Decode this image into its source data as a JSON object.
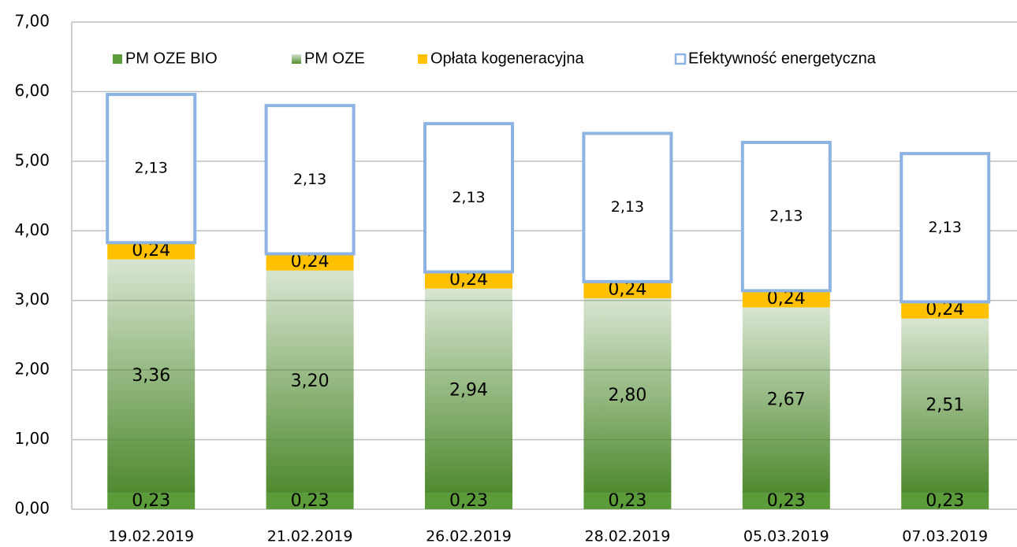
{
  "chart_data": {
    "type": "bar",
    "stacked": true,
    "categories": [
      "19.02.2019",
      "21.02.2019",
      "26.02.2019",
      "28.02.2019",
      "05.03.2019",
      "07.03.2019"
    ],
    "series": [
      {
        "name": "PM OZE BIO",
        "color": "#5b9b3a",
        "values": [
          0.23,
          0.23,
          0.23,
          0.23,
          0.23,
          0.23
        ],
        "value_labels": [
          "0,23",
          "0,23",
          "0,23",
          "0,23",
          "0,23",
          "0,23"
        ]
      },
      {
        "name": "PM OZE",
        "color": "#4f8a2f",
        "gradient": true,
        "values": [
          3.36,
          3.2,
          2.94,
          2.8,
          2.67,
          2.51
        ],
        "value_labels": [
          "3,36",
          "3,20",
          "2,94",
          "2,80",
          "2,67",
          "2,51"
        ]
      },
      {
        "name": "Opłata kogeneracyjna",
        "color": "#ffc000",
        "values": [
          0.24,
          0.24,
          0.24,
          0.24,
          0.24,
          0.24
        ],
        "value_labels": [
          "0,24",
          "0,24",
          "0,24",
          "0,24",
          "0,24",
          "0,24"
        ]
      },
      {
        "name": "Efektywność energetyczna",
        "color": "#8db3e2",
        "outline": true,
        "values": [
          2.13,
          2.13,
          2.13,
          2.13,
          2.13,
          2.13
        ],
        "value_labels": [
          "2,13",
          "2,13",
          "2,13",
          "2,13",
          "2,13",
          "2,13"
        ]
      }
    ],
    "ylim": [
      0,
      7
    ],
    "yticks": [
      {
        "value": 0,
        "label": "0,00"
      },
      {
        "value": 1,
        "label": "1,00"
      },
      {
        "value": 2,
        "label": "2,00"
      },
      {
        "value": 3,
        "label": "3,00"
      },
      {
        "value": 4,
        "label": "4,00"
      },
      {
        "value": 5,
        "label": "5,00"
      },
      {
        "value": 6,
        "label": "6,00"
      },
      {
        "value": 7,
        "label": "7,00"
      }
    ],
    "grid": true,
    "legend": "top"
  }
}
